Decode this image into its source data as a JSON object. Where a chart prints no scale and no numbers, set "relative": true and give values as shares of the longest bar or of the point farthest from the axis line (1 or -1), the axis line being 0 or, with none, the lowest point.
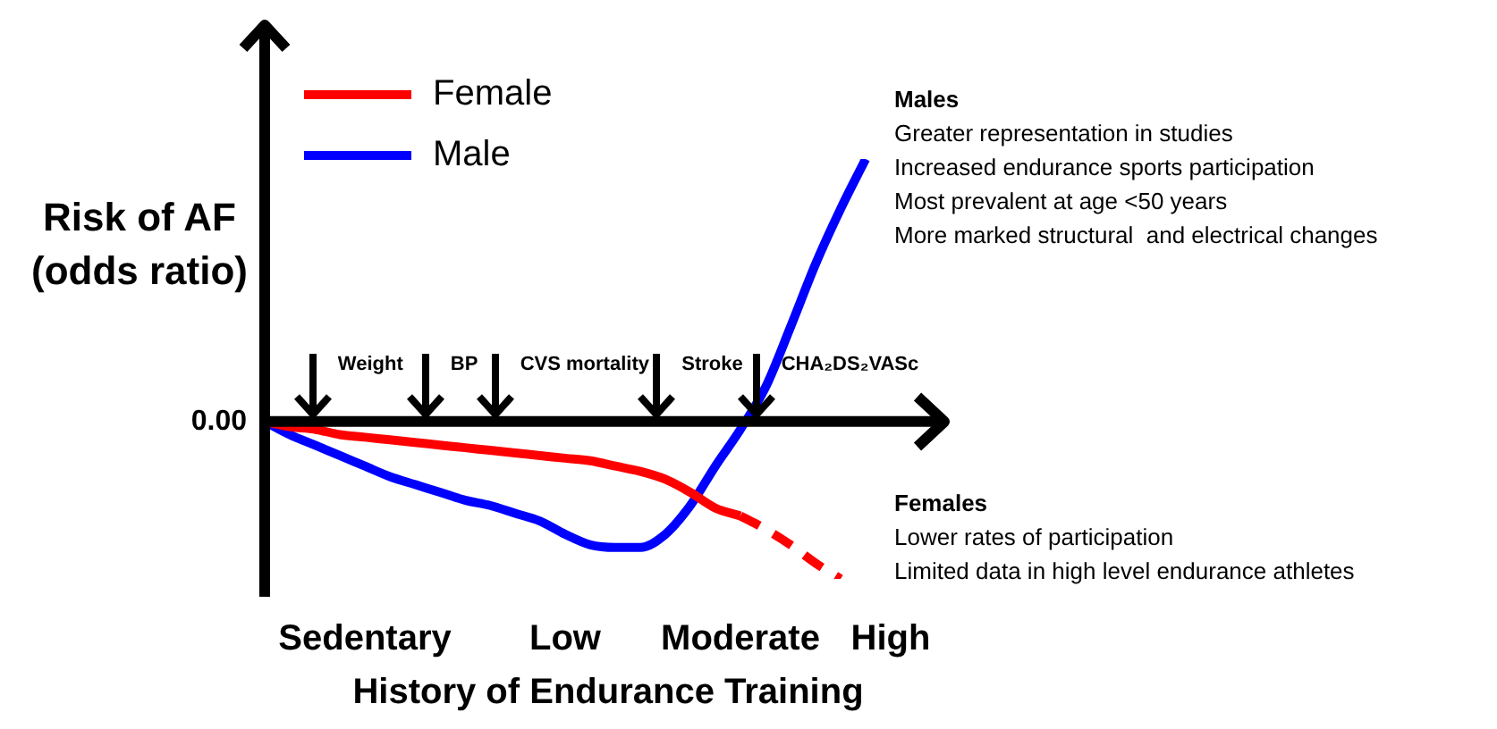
{
  "chart_data": {
    "type": "line",
    "relative": true,
    "xlabel": "History of Endurance Training",
    "ylabel": "Risk of AF (odds ratio)",
    "categories": [
      null,
      null,
      null,
      null,
      "Sedentary",
      null,
      null,
      null,
      null,
      null,
      null,
      null,
      "Low",
      null,
      null,
      null,
      null,
      null,
      null,
      "Moderate",
      null,
      null,
      null,
      null,
      null,
      "High",
      null
    ],
    "series": [
      {
        "name": "Female",
        "color": "#ff0000",
        "values": [
          0,
          -0.02,
          -0.03,
          -0.05,
          -0.06,
          -0.07,
          -0.08,
          -0.09,
          -0.1,
          -0.11,
          -0.12,
          -0.13,
          -0.14,
          -0.15,
          -0.17,
          -0.19,
          -0.22,
          -0.27,
          -0.33,
          -0.36,
          null,
          null,
          null,
          null,
          null,
          null,
          null
        ]
      },
      {
        "color": "#ff0000",
        "line_style": "dashed",
        "values": [
          null,
          null,
          null,
          null,
          null,
          null,
          null,
          null,
          null,
          null,
          null,
          null,
          null,
          null,
          null,
          null,
          null,
          null,
          null,
          -0.36,
          -0.41,
          -0.47,
          -0.54,
          -0.6,
          null,
          null,
          null
        ]
      },
      {
        "name": "Male",
        "color": "#0000ff",
        "values": [
          0,
          -0.05,
          -0.09,
          -0.13,
          -0.17,
          -0.21,
          -0.24,
          -0.27,
          -0.3,
          -0.32,
          -0.35,
          -0.38,
          -0.43,
          -0.47,
          -0.48,
          -0.48,
          -0.43,
          -0.32,
          -0.17,
          -0.03,
          0.13,
          0.36,
          0.6,
          0.81,
          1,
          null,
          null
        ]
      }
    ],
    "legend": "top left",
    "line_style": "solid",
    "marker": "none",
    "annotations": [
      "0.00",
      "Weight",
      "BP",
      "CVS mortality",
      "Stroke",
      "CHA₂DS₂VASc",
      "Males\nGreater representation in studies\nIncreased endurance sports participation\nMost prevalent at age <50 years\nMore marked structural  and electrical changes",
      "Females\nLower rates of participation\nLimited data in high level endurance athletes"
    ]
  }
}
